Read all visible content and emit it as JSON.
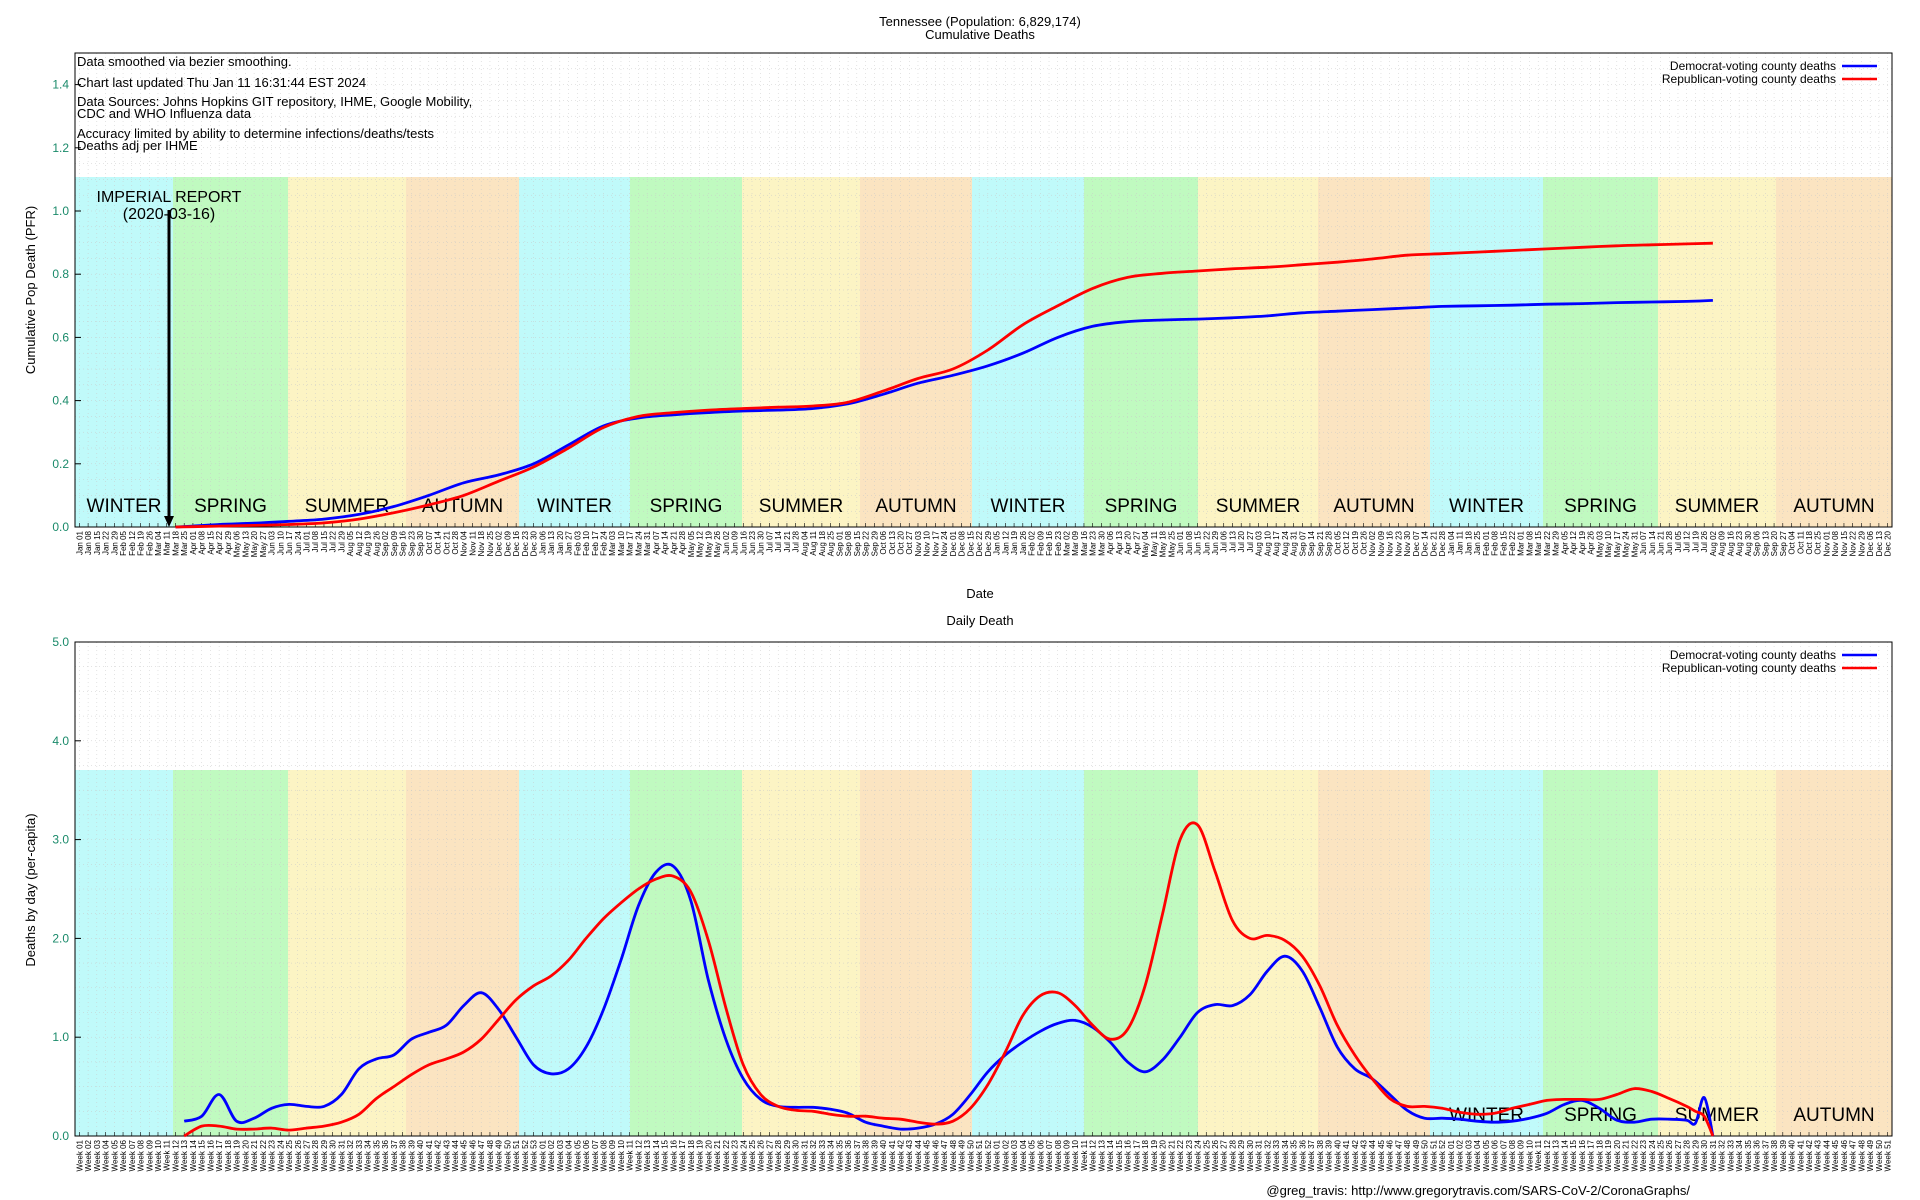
{
  "footer": "@greg_travis: http://www.gregorytravis.com/SARS-CoV-2/CoronaGraphs/",
  "colors": {
    "democrat": "#0000ff",
    "republican": "#ff0000",
    "winter": "#c0fafa",
    "spring": "#c0fac0",
    "summer": "#fcf4c4",
    "autumn": "#fbe4c1",
    "ytick": "#1a8a6a"
  },
  "season_bands": [
    "WINTER",
    "SPRING",
    "SUMMER",
    "AUTUMN",
    "WINTER",
    "SPRING",
    "SUMMER",
    "AUTUMN",
    "WINTER",
    "SPRING",
    "SUMMER",
    "AUTUMN",
    "WINTER",
    "SPRING",
    "SUMMER",
    "AUTUMN"
  ],
  "chart_data": [
    {
      "type": "line",
      "title": "Tennessee (Population: 6,829,174)",
      "subtitle": "Cumulative Deaths",
      "xlabel": "Date",
      "ylabel": "Cumulative Pop Death (PFR)",
      "ylim": [
        0,
        1.5
      ],
      "yticks": [
        "0.0",
        "0.2",
        "0.4",
        "0.6",
        "0.8",
        "1.0",
        "1.2",
        "1.4"
      ],
      "grid": true,
      "legend_position": "top-right",
      "notes": [
        "Data smoothed via bezier smoothing.",
        "Chart last updated Thu Jan 11 16:31:44 EST 2024",
        "Data Sources: Johns Hopkins GIT repository, IHME, Google Mobility,",
        "CDC and WHO Influenza data",
        "Accuracy limited by ability to determine infections/deaths/tests",
        "Deaths adj per IHME"
      ],
      "annotation": {
        "label": "IMPERIAL REPORT",
        "date": "(2020-03-16)"
      },
      "x_tick_labels": [
        "Jan 01",
        "Jan 08",
        "Jan 15",
        "Jan 22",
        "Jan 29",
        "Feb 05",
        "Feb 12",
        "Feb 19",
        "Feb 26",
        "Mar 04",
        "Mar 11",
        "Mar 18",
        "Mar 25",
        "Apr 01",
        "Apr 08",
        "Apr 15",
        "Apr 22",
        "Apr 29",
        "May 06",
        "May 13",
        "May 20",
        "May 27",
        "Jun 03",
        "Jun 10",
        "Jun 17",
        "Jun 24",
        "Jul 01",
        "Jul 08",
        "Jul 15",
        "Jul 22",
        "Jul 29",
        "Aug 05",
        "Aug 12",
        "Aug 19",
        "Aug 26",
        "Sep 02",
        "Sep 09",
        "Sep 16",
        "Sep 23",
        "Sep 30",
        "Oct 07",
        "Oct 14",
        "Oct 21",
        "Oct 28",
        "Nov 04",
        "Nov 11",
        "Nov 18",
        "Nov 25",
        "Dec 02",
        "Dec 09",
        "Dec 16",
        "Dec 23",
        "Dec 30",
        "Jan 06",
        "Jan 13",
        "Jan 20",
        "Jan 27",
        "Feb 03",
        "Feb 10",
        "Feb 17",
        "Feb 24",
        "Mar 03",
        "Mar 10",
        "Mar 17",
        "Mar 24",
        "Mar 31",
        "Apr 07",
        "Apr 14",
        "Apr 21",
        "Apr 28",
        "May 05",
        "May 12",
        "May 19",
        "May 26",
        "Jun 02",
        "Jun 09",
        "Jun 16",
        "Jun 23",
        "Jun 30",
        "Jul 07",
        "Jul 14",
        "Jul 21",
        "Jul 28",
        "Aug 04",
        "Aug 11",
        "Aug 18",
        "Aug 25",
        "Sep 01",
        "Sep 08",
        "Sep 15",
        "Sep 22",
        "Sep 29",
        "Oct 06",
        "Oct 13",
        "Oct 20",
        "Oct 27",
        "Nov 03",
        "Nov 10",
        "Nov 17",
        "Nov 24",
        "Dec 01",
        "Dec 08",
        "Dec 15",
        "Dec 22",
        "Dec 29",
        "Jan 05",
        "Jan 12",
        "Jan 19",
        "Jan 26",
        "Feb 02",
        "Feb 09",
        "Feb 16",
        "Feb 23",
        "Mar 02",
        "Mar 09",
        "Mar 16",
        "Mar 23",
        "Mar 30",
        "Apr 06",
        "Apr 13",
        "Apr 20",
        "Apr 27",
        "May 04",
        "May 11",
        "May 18",
        "May 25",
        "Jun 01",
        "Jun 08",
        "Jun 15",
        "Jun 22",
        "Jun 29",
        "Jul 06",
        "Jul 13",
        "Jul 20",
        "Jul 27",
        "Aug 03",
        "Aug 10",
        "Aug 17",
        "Aug 24",
        "Aug 31",
        "Sep 07",
        "Sep 14",
        "Sep 21",
        "Sep 28",
        "Oct 05",
        "Oct 12",
        "Oct 19",
        "Oct 26",
        "Nov 02",
        "Nov 09",
        "Nov 16",
        "Nov 23",
        "Nov 30",
        "Dec 07",
        "Dec 14",
        "Dec 21",
        "Dec 28",
        "Jan 04",
        "Jan 11",
        "Jan 18",
        "Jan 25",
        "Feb 01",
        "Feb 08",
        "Feb 15",
        "Feb 22",
        "Mar 01",
        "Mar 08",
        "Mar 15",
        "Mar 22",
        "Mar 29",
        "Apr 05",
        "Apr 12",
        "Apr 19",
        "Apr 26",
        "May 03",
        "May 10",
        "May 17",
        "May 24",
        "May 31",
        "Jun 07",
        "Jun 14",
        "Jun 21",
        "Jun 28",
        "Jul 05",
        "Jul 12",
        "Jul 19",
        "Jul 26",
        "Aug 02",
        "Aug 09",
        "Aug 16",
        "Aug 23",
        "Aug 30",
        "Sep 06",
        "Sep 13",
        "Sep 20",
        "Sep 27",
        "Oct 04",
        "Oct 11",
        "Oct 18",
        "Oct 25",
        "Nov 01",
        "Nov 08",
        "Nov 15",
        "Nov 22",
        "Nov 29",
        "Dec 06",
        "Dec 13",
        "Dec 20"
      ],
      "series": [
        {
          "name": "Democrat-voting county deaths",
          "color": "#0000ff",
          "x": [
            11,
            13,
            16,
            20,
            24,
            28,
            32,
            36,
            40,
            44,
            48,
            52,
            56,
            60,
            64,
            68,
            72,
            76,
            80,
            84,
            88,
            92,
            96,
            100,
            104,
            108,
            112,
            116,
            120,
            124,
            128,
            132,
            136,
            140,
            144,
            148,
            152,
            156,
            160,
            164,
            168,
            172,
            176,
            180,
            184,
            187
          ],
          "y": [
            0,
            0.003,
            0.008,
            0.012,
            0.018,
            0.025,
            0.04,
            0.065,
            0.1,
            0.14,
            0.165,
            0.2,
            0.26,
            0.32,
            0.345,
            0.355,
            0.362,
            0.367,
            0.37,
            0.375,
            0.39,
            0.42,
            0.455,
            0.48,
            0.51,
            0.55,
            0.6,
            0.635,
            0.65,
            0.655,
            0.658,
            0.662,
            0.668,
            0.678,
            0.683,
            0.688,
            0.693,
            0.698,
            0.7,
            0.702,
            0.705,
            0.707,
            0.71,
            0.712,
            0.714,
            0.717
          ]
        },
        {
          "name": "Republican-voting county deaths",
          "color": "#ff0000",
          "x": [
            11,
            13,
            16,
            20,
            24,
            28,
            32,
            36,
            40,
            44,
            48,
            52,
            56,
            60,
            64,
            68,
            72,
            76,
            80,
            84,
            88,
            92,
            96,
            100,
            104,
            108,
            112,
            116,
            120,
            124,
            128,
            132,
            136,
            140,
            144,
            148,
            152,
            156,
            160,
            164,
            168,
            172,
            176,
            180,
            184,
            187
          ],
          "y": [
            0,
            0.001,
            0.003,
            0.005,
            0.008,
            0.013,
            0.025,
            0.045,
            0.07,
            0.1,
            0.145,
            0.19,
            0.25,
            0.315,
            0.35,
            0.362,
            0.37,
            0.375,
            0.379,
            0.383,
            0.395,
            0.43,
            0.47,
            0.5,
            0.56,
            0.64,
            0.7,
            0.755,
            0.79,
            0.803,
            0.81,
            0.817,
            0.822,
            0.83,
            0.838,
            0.848,
            0.86,
            0.865,
            0.87,
            0.875,
            0.88,
            0.885,
            0.89,
            0.893,
            0.896,
            0.898
          ]
        }
      ]
    },
    {
      "type": "line",
      "title": "Daily Death",
      "xlabel": "",
      "ylabel": "Deaths by day (per-capita)",
      "ylim": [
        0,
        5
      ],
      "yticks": [
        "0.0",
        "1.0",
        "2.0",
        "3.0",
        "4.0",
        "5.0"
      ],
      "grid": true,
      "legend_position": "top-right",
      "x_tick_labels": [
        "Week 01",
        "Week 02",
        "Week 03",
        "Week 04",
        "Week 05",
        "Week 06",
        "Week 07",
        "Week 08",
        "Week 09",
        "Week 10",
        "Week 11",
        "Week 12",
        "Week 13",
        "Week 14",
        "Week 15",
        "Week 16",
        "Week 17",
        "Week 18",
        "Week 19",
        "Week 20",
        "Week 21",
        "Week 22",
        "Week 23",
        "Week 24",
        "Week 25",
        "Week 26",
        "Week 27",
        "Week 28",
        "Week 29",
        "Week 30",
        "Week 31",
        "Week 32",
        "Week 33",
        "Week 34",
        "Week 35",
        "Week 36",
        "Week 37",
        "Week 38",
        "Week 39",
        "Week 40",
        "Week 41",
        "Week 42",
        "Week 43",
        "Week 44",
        "Week 45",
        "Week 46",
        "Week 47",
        "Week 48",
        "Week 49",
        "Week 50",
        "Week 51",
        "Week 52",
        "Week 53",
        "Week 01",
        "Week 02",
        "Week 03",
        "Week 04",
        "Week 05",
        "Week 06",
        "Week 07",
        "Week 08",
        "Week 09",
        "Week 10",
        "Week 11",
        "Week 12",
        "Week 13",
        "Week 14",
        "Week 15",
        "Week 16",
        "Week 17",
        "Week 18",
        "Week 19",
        "Week 20",
        "Week 21",
        "Week 22",
        "Week 23",
        "Week 24",
        "Week 25",
        "Week 26",
        "Week 27",
        "Week 28",
        "Week 29",
        "Week 30",
        "Week 31",
        "Week 32",
        "Week 33",
        "Week 34",
        "Week 35",
        "Week 36",
        "Week 37",
        "Week 38",
        "Week 39",
        "Week 40",
        "Week 41",
        "Week 42",
        "Week 43",
        "Week 44",
        "Week 45",
        "Week 46",
        "Week 47",
        "Week 48",
        "Week 49",
        "Week 50",
        "Week 51",
        "Week 52",
        "Week 01",
        "Week 02",
        "Week 03",
        "Week 04",
        "Week 05",
        "Week 06",
        "Week 07",
        "Week 08",
        "Week 09",
        "Week 10",
        "Week 11",
        "Week 12",
        "Week 13",
        "Week 14",
        "Week 15",
        "Week 16",
        "Week 17",
        "Week 18",
        "Week 19",
        "Week 20",
        "Week 21",
        "Week 22",
        "Week 23",
        "Week 24",
        "Week 25",
        "Week 26",
        "Week 27",
        "Week 28",
        "Week 29",
        "Week 30",
        "Week 31",
        "Week 32",
        "Week 33",
        "Week 34",
        "Week 35",
        "Week 36",
        "Week 37",
        "Week 38",
        "Week 39",
        "Week 40",
        "Week 41",
        "Week 42",
        "Week 43",
        "Week 44",
        "Week 45",
        "Week 46",
        "Week 47",
        "Week 48",
        "Week 49",
        "Week 50",
        "Week 51",
        "Week 52",
        "Week 01",
        "Week 02",
        "Week 03",
        "Week 04",
        "Week 05",
        "Week 06",
        "Week 07",
        "Week 08",
        "Week 09",
        "Week 10",
        "Week 11",
        "Week 12",
        "Week 13",
        "Week 14",
        "Week 15",
        "Week 16",
        "Week 17",
        "Week 18",
        "Week 19",
        "Week 20",
        "Week 21",
        "Week 22",
        "Week 23",
        "Week 24",
        "Week 25",
        "Week 26",
        "Week 27",
        "Week 28",
        "Week 29",
        "Week 30",
        "Week 31",
        "Week 32",
        "Week 33",
        "Week 34",
        "Week 35",
        "Week 36",
        "Week 37",
        "Week 38",
        "Week 39",
        "Week 40",
        "Week 41",
        "Week 42",
        "Week 43",
        "Week 44",
        "Week 45",
        "Week 46",
        "Week 47",
        "Week 48",
        "Week 49",
        "Week 50",
        "Week 51"
      ],
      "series": [
        {
          "name": "Democrat-voting county deaths",
          "color": "#0000ff",
          "x": [
            12,
            14,
            16,
            18,
            20,
            22,
            24,
            26,
            28,
            30,
            32,
            34,
            36,
            38,
            40,
            42,
            44,
            46,
            48,
            50,
            52,
            54,
            56,
            58,
            60,
            62,
            64,
            66,
            68,
            70,
            72,
            74,
            76,
            78,
            80,
            82,
            84,
            86,
            88,
            90,
            92,
            94,
            96,
            98,
            100,
            102,
            104,
            106,
            108,
            110,
            112,
            114,
            116,
            118,
            120,
            122,
            124,
            126,
            128,
            130,
            132,
            134,
            136,
            138,
            140,
            142,
            144,
            146,
            148,
            150,
            152,
            154,
            156,
            158,
            160,
            162,
            164,
            166,
            168,
            170,
            172,
            174,
            176,
            178,
            180,
            182,
            184,
            185,
            186,
            187
          ],
          "y": [
            0.15,
            0.2,
            0.42,
            0.15,
            0.18,
            0.28,
            0.32,
            0.3,
            0.3,
            0.42,
            0.68,
            0.78,
            0.82,
            0.98,
            1.05,
            1.12,
            1.32,
            1.45,
            1.28,
            1.0,
            0.72,
            0.63,
            0.68,
            0.9,
            1.28,
            1.78,
            2.33,
            2.67,
            2.73,
            2.38,
            1.58,
            0.98,
            0.58,
            0.37,
            0.3,
            0.29,
            0.29,
            0.27,
            0.23,
            0.14,
            0.1,
            0.07,
            0.08,
            0.12,
            0.22,
            0.42,
            0.65,
            0.82,
            0.95,
            1.06,
            1.14,
            1.17,
            1.1,
            0.95,
            0.75,
            0.65,
            0.77,
            1.0,
            1.25,
            1.33,
            1.32,
            1.43,
            1.67,
            1.82,
            1.67,
            1.3,
            0.9,
            0.68,
            0.58,
            0.42,
            0.26,
            0.18,
            0.18,
            0.17,
            0.15,
            0.14,
            0.15,
            0.18,
            0.23,
            0.32,
            0.36,
            0.28,
            0.16,
            0.14,
            0.17,
            0.17,
            0.16,
            0.13,
            0.39,
            0.0
          ]
        },
        {
          "name": "Republican-voting county deaths",
          "color": "#ff0000",
          "x": [
            12,
            14,
            16,
            18,
            20,
            22,
            24,
            26,
            28,
            30,
            32,
            34,
            36,
            38,
            40,
            42,
            44,
            46,
            48,
            50,
            52,
            54,
            56,
            58,
            60,
            62,
            64,
            66,
            68,
            70,
            72,
            74,
            76,
            78,
            80,
            82,
            84,
            86,
            88,
            90,
            92,
            94,
            96,
            98,
            100,
            102,
            104,
            106,
            108,
            110,
            112,
            114,
            116,
            118,
            120,
            122,
            124,
            126,
            128,
            130,
            132,
            134,
            136,
            138,
            140,
            142,
            144,
            146,
            148,
            150,
            152,
            154,
            156,
            158,
            160,
            162,
            164,
            166,
            168,
            170,
            172,
            174,
            176,
            178,
            180,
            182,
            184,
            185,
            186,
            187
          ],
          "y": [
            0.0,
            0.1,
            0.1,
            0.07,
            0.07,
            0.08,
            0.06,
            0.08,
            0.1,
            0.14,
            0.22,
            0.38,
            0.5,
            0.62,
            0.72,
            0.78,
            0.85,
            0.98,
            1.18,
            1.38,
            1.52,
            1.62,
            1.78,
            2.0,
            2.2,
            2.36,
            2.5,
            2.6,
            2.63,
            2.47,
            1.98,
            1.3,
            0.72,
            0.42,
            0.3,
            0.26,
            0.25,
            0.22,
            0.2,
            0.2,
            0.18,
            0.17,
            0.14,
            0.12,
            0.15,
            0.28,
            0.52,
            0.85,
            1.22,
            1.42,
            1.45,
            1.32,
            1.12,
            0.98,
            1.08,
            1.52,
            2.25,
            3.0,
            3.15,
            2.68,
            2.18,
            2.0,
            2.03,
            1.98,
            1.82,
            1.52,
            1.12,
            0.82,
            0.58,
            0.38,
            0.3,
            0.3,
            0.28,
            0.24,
            0.22,
            0.23,
            0.28,
            0.32,
            0.36,
            0.37,
            0.37,
            0.37,
            0.42,
            0.48,
            0.45,
            0.38,
            0.3,
            0.25,
            0.2,
            0.0
          ]
        }
      ]
    }
  ]
}
